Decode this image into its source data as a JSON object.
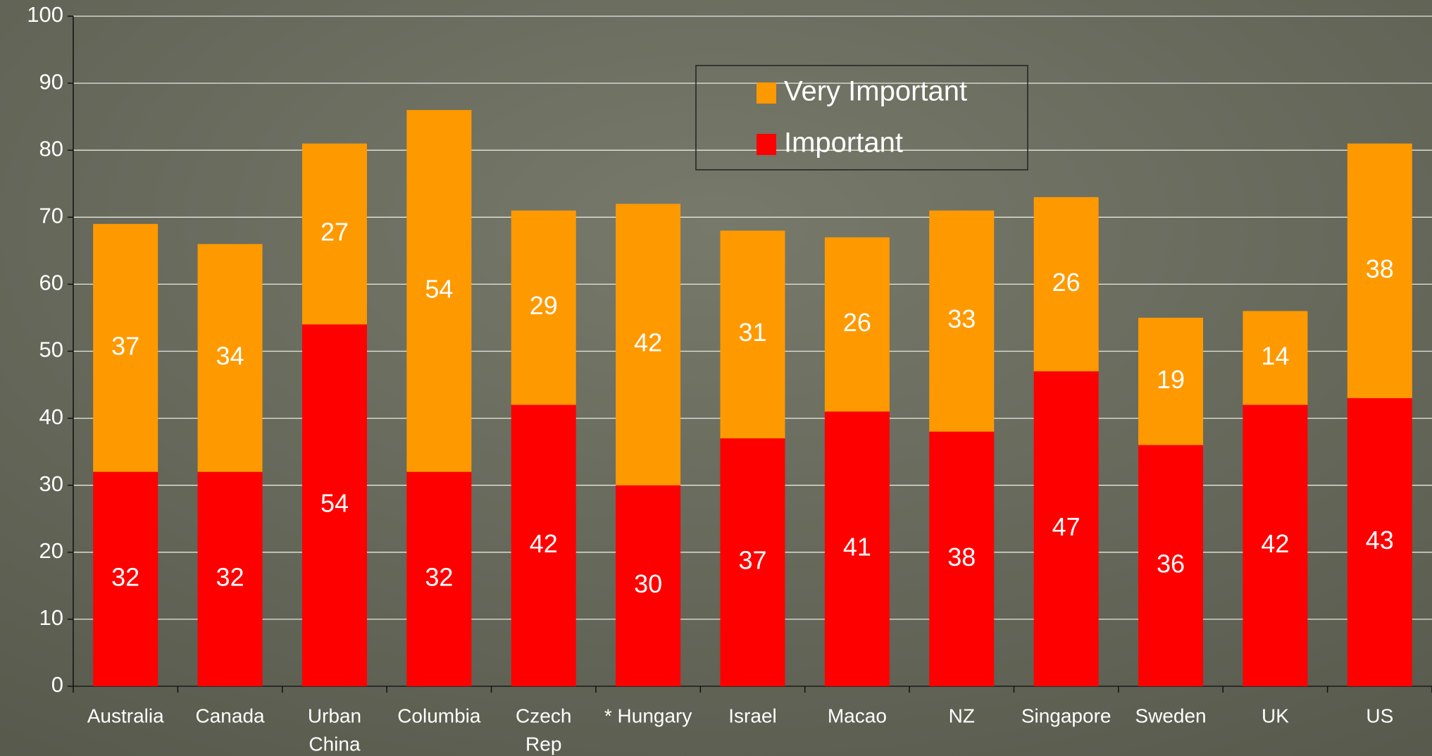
{
  "chart_data": {
    "type": "stacked_bar",
    "categories": [
      "Australia",
      "Canada",
      [
        "Urban",
        "China"
      ],
      "Columbia",
      [
        "Czech",
        "Rep"
      ],
      "* Hungary",
      "Israel",
      "Macao",
      "NZ",
      "Singapore",
      "Sweden",
      "UK",
      "US"
    ],
    "series": [
      {
        "name": "Important",
        "color": "#ff0000",
        "values": [
          32,
          32,
          54,
          32,
          42,
          30,
          37,
          41,
          38,
          47,
          36,
          42,
          43
        ]
      },
      {
        "name": "Very Important",
        "color": "#ff9900",
        "values": [
          37,
          34,
          27,
          54,
          29,
          42,
          31,
          26,
          33,
          26,
          19,
          14,
          38
        ]
      }
    ],
    "ylim": [
      0,
      100
    ],
    "yticks": [
      0,
      10,
      20,
      30,
      40,
      50,
      60,
      70,
      80,
      90,
      100
    ],
    "grid": true,
    "legend": "top-center"
  }
}
